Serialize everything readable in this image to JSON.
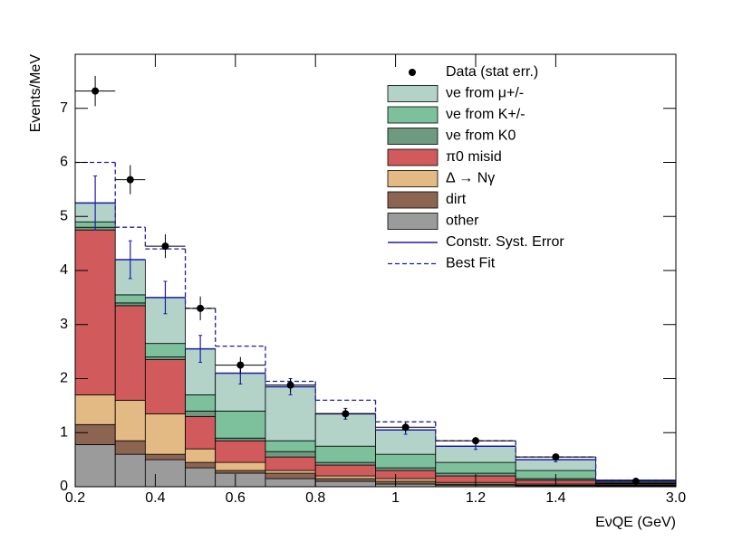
{
  "chart_data": {
    "type": "histogram",
    "xlabel": "EνQE (GeV)",
    "ylabel": "Events/MeV",
    "bins": [
      0.2,
      0.3,
      0.375,
      0.475,
      0.55,
      0.675,
      0.8,
      0.95,
      1.1,
      1.3,
      1.5,
      3.0
    ],
    "xlim": [
      0.2,
      3.0
    ],
    "xticks": [
      0.2,
      0.4,
      0.6,
      0.8,
      1,
      1.2,
      1.4,
      {
        "value": 3.0,
        "label": "3.0"
      }
    ],
    "ylim": [
      0,
      8
    ],
    "yticks": [
      0,
      1,
      2,
      3,
      4,
      5,
      6,
      7
    ],
    "legend": "upper right",
    "series": [
      {
        "name": "νe from μ+/-",
        "color": "#b3d3c9",
        "values": [
          0.35,
          0.65,
          0.85,
          0.85,
          0.7,
          1.0,
          0.6,
          0.45,
          0.3,
          0.2,
          0.04
        ]
      },
      {
        "name": "νe from K+/-",
        "color": "#7cc19c",
        "values": [
          0.1,
          0.15,
          0.25,
          0.3,
          0.5,
          0.2,
          0.3,
          0.25,
          0.2,
          0.15,
          0.02
        ]
      },
      {
        "name": "νe from K0",
        "color": "#6e9a80",
        "values": [
          0.05,
          0.05,
          0.05,
          0.1,
          0.05,
          0.1,
          0.05,
          0.05,
          0.05,
          0.03,
          0.01
        ]
      },
      {
        "name": "π0 misid",
        "color": "#d05a5c",
        "values": [
          3.05,
          1.75,
          1.0,
          0.6,
          0.4,
          0.25,
          0.2,
          0.15,
          0.12,
          0.07,
          0.02
        ]
      },
      {
        "name": "Δ → Nγ",
        "color": "#e3ba84",
        "values": [
          0.55,
          0.75,
          0.75,
          0.25,
          0.15,
          0.05,
          0.05,
          0.05,
          0.03,
          0.02,
          0.01
        ]
      },
      {
        "name": "dirt",
        "color": "#8c6552",
        "values": [
          0.37,
          0.25,
          0.1,
          0.1,
          0.05,
          0.1,
          0.05,
          0.05,
          0.02,
          0.01,
          0.01
        ]
      },
      {
        "name": "other",
        "color": "#9b9b9b",
        "values": [
          0.78,
          0.6,
          0.5,
          0.35,
          0.25,
          0.15,
          0.1,
          0.05,
          0.03,
          0.02,
          0.01
        ]
      }
    ],
    "data": {
      "name": "Data (stat err.)",
      "color": "#000000",
      "values": [
        7.32,
        5.68,
        4.45,
        3.3,
        2.25,
        1.88,
        1.35,
        1.1,
        0.85,
        0.55,
        0.1
      ],
      "errors": [
        0.28,
        0.27,
        0.22,
        0.22,
        0.15,
        0.13,
        0.1,
        0.09,
        0.07,
        0.06,
        0.04
      ]
    },
    "systematic": {
      "name": "Constr. Syst. Error",
      "color": "#1c1ca8",
      "errors": [
        0.5,
        0.35,
        0.3,
        0.25,
        0.2,
        0.15,
        0.1,
        0.08,
        0.06,
        0.04,
        0.02
      ]
    },
    "best_fit": {
      "name": "Best Fit",
      "color": "#1c1ca8",
      "values": [
        6.0,
        4.8,
        4.4,
        3.3,
        2.6,
        1.95,
        1.6,
        1.2,
        0.85,
        0.55,
        0.12
      ]
    }
  }
}
